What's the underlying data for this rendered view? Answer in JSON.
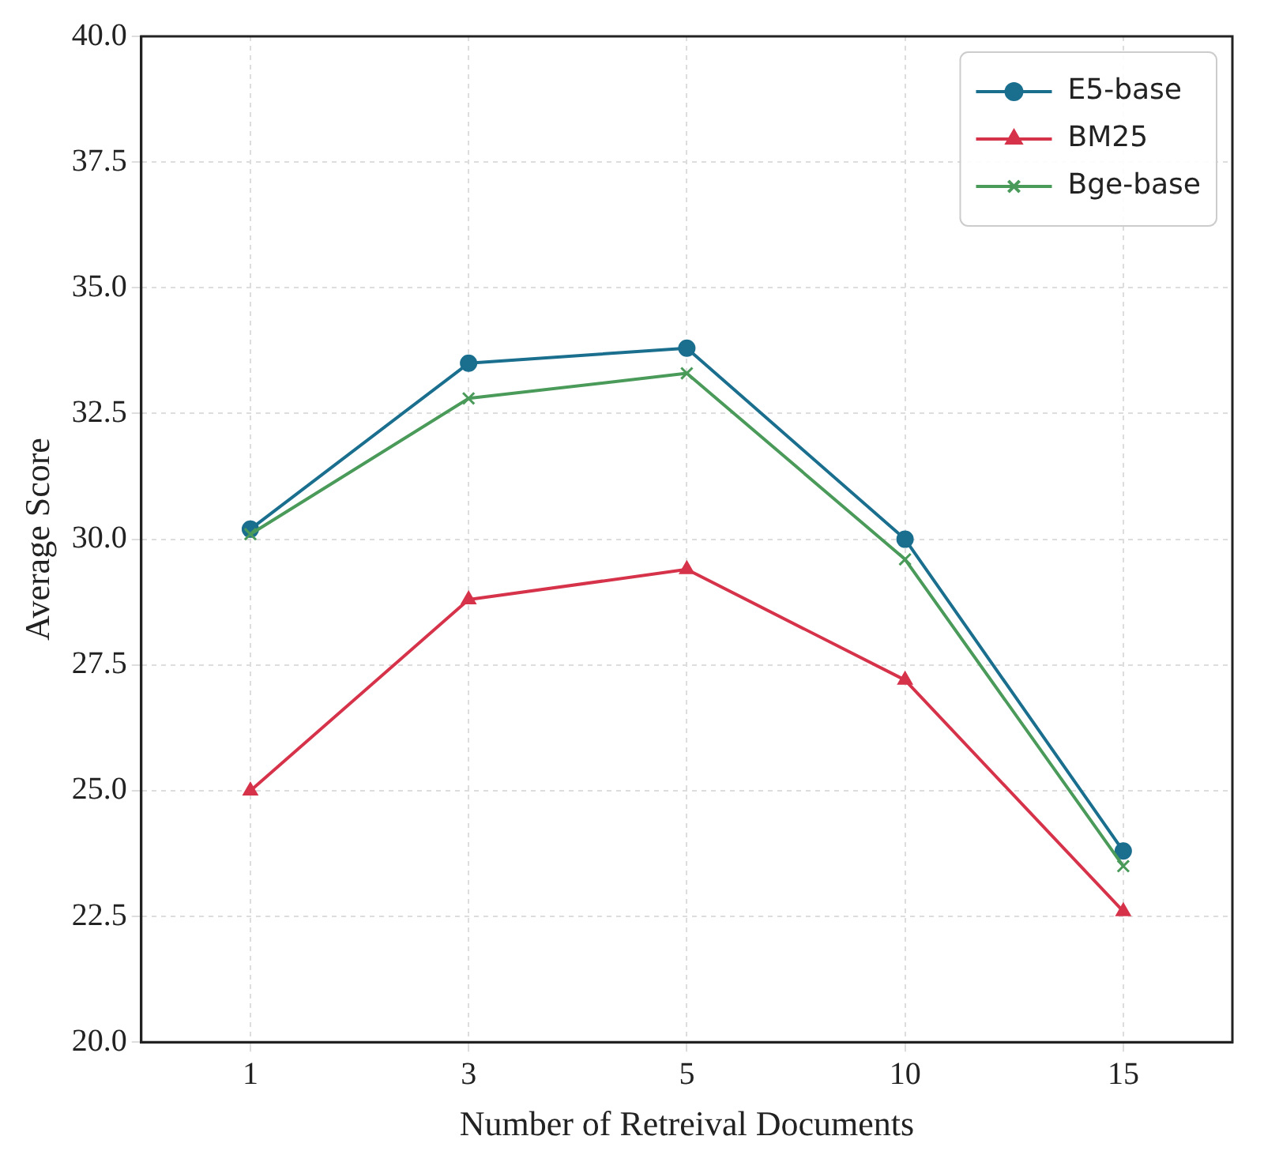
{
  "chart_data": {
    "type": "line",
    "xlabel": "Number of Retreival Documents",
    "ylabel": "Average Score",
    "categories": [
      "1",
      "3",
      "5",
      "10",
      "15"
    ],
    "series": [
      {
        "name": "E5-base",
        "color": "#1a6e8e",
        "marker": "circle",
        "values": [
          30.2,
          33.5,
          33.8,
          30.0,
          23.8
        ]
      },
      {
        "name": "BM25",
        "color": "#d6334a",
        "marker": "triangle",
        "values": [
          25.0,
          28.8,
          29.4,
          27.2,
          22.6
        ]
      },
      {
        "name": "Bge-base",
        "color": "#4a9a5a",
        "marker": "cross",
        "values": [
          30.1,
          32.8,
          33.3,
          29.6,
          23.5
        ]
      }
    ],
    "ylim": [
      20,
      40
    ],
    "yticks": [
      {
        "value": 20,
        "label": "20.0"
      },
      {
        "value": 22.5,
        "label": "22.5"
      },
      {
        "value": 25,
        "label": "25.0"
      },
      {
        "value": 27.5,
        "label": "27.5"
      },
      {
        "value": 30,
        "label": "30.0"
      },
      {
        "value": 32.5,
        "label": "32.5"
      },
      {
        "value": 35,
        "label": "35.0"
      },
      {
        "value": 37.5,
        "label": "37.5"
      },
      {
        "value": 40,
        "label": "40.0"
      }
    ],
    "grid": true,
    "legend": "top right",
    "line_style": "solid"
  }
}
